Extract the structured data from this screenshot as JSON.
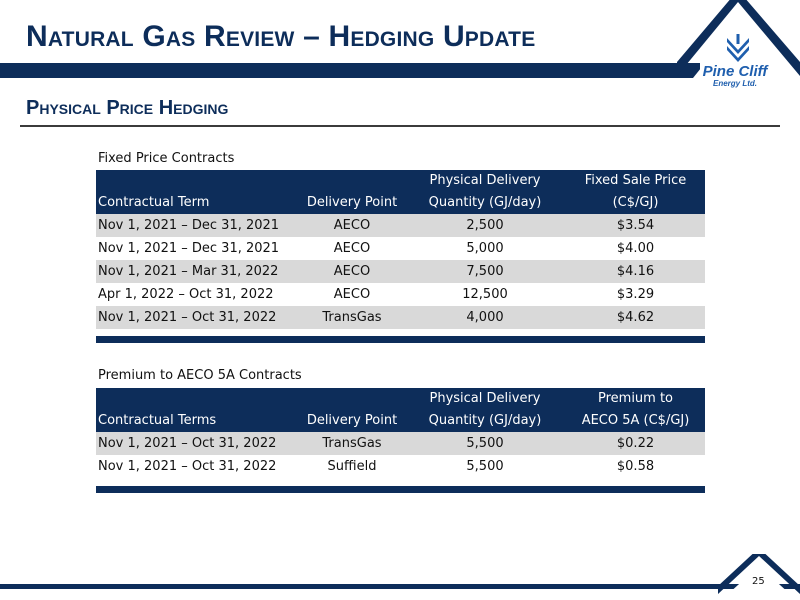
{
  "header": {
    "title": "Natural Gas Review – Hedging Update",
    "logo": {
      "name": "Pine Cliff",
      "sub": "Energy Ltd.",
      "icon": "pine-cliff-logo-icon"
    }
  },
  "section_title": "Physical Price Hedging",
  "fixed": {
    "caption": "Fixed Price Contracts",
    "headers": {
      "term": "Contractual Term",
      "point": "Delivery Point",
      "qty_1": "Physical Delivery",
      "qty_2": "Quantity (GJ/day)",
      "price_1": "Fixed Sale Price",
      "price_2": "(C$/GJ)"
    },
    "rows": [
      {
        "term": "Nov 1, 2021 – Dec 31, 2021",
        "point": "AECO",
        "qty": "2,500",
        "price": "$3.54"
      },
      {
        "term": "Nov 1, 2021 – Dec 31, 2021",
        "point": "AECO",
        "qty": "5,000",
        "price": "$4.00"
      },
      {
        "term": "Nov 1, 2021 – Mar 31, 2022",
        "point": "AECO",
        "qty": "7,500",
        "price": "$4.16"
      },
      {
        "term": "Apr 1, 2022 – Oct 31, 2022",
        "point": "AECO",
        "qty": "12,500",
        "price": "$3.29"
      },
      {
        "term": "Nov 1, 2021 – Oct 31, 2022",
        "point": "TransGas",
        "qty": "4,000",
        "price": "$4.62"
      }
    ]
  },
  "premium": {
    "caption": "Premium to AECO 5A Contracts",
    "headers": {
      "term": "Contractual Terms",
      "point": "Delivery Point",
      "qty_1": "Physical Delivery",
      "qty_2": "Quantity (GJ/day)",
      "price_1": "Premium to",
      "price_2": "AECO 5A (C$/GJ)"
    },
    "rows": [
      {
        "term": "Nov 1, 2021 – Oct 31, 2022",
        "point": "TransGas",
        "qty": "5,500",
        "price": "$0.22"
      },
      {
        "term": "Nov 1, 2021 – Oct 31, 2022",
        "point": "Suffield",
        "qty": "5,500",
        "price": "$0.58"
      }
    ]
  },
  "footer": {
    "page_number": "25"
  },
  "colors": {
    "navy": "#0d2d5a",
    "logo_blue": "#1f5fae",
    "row_gray": "#d9d9d9"
  }
}
